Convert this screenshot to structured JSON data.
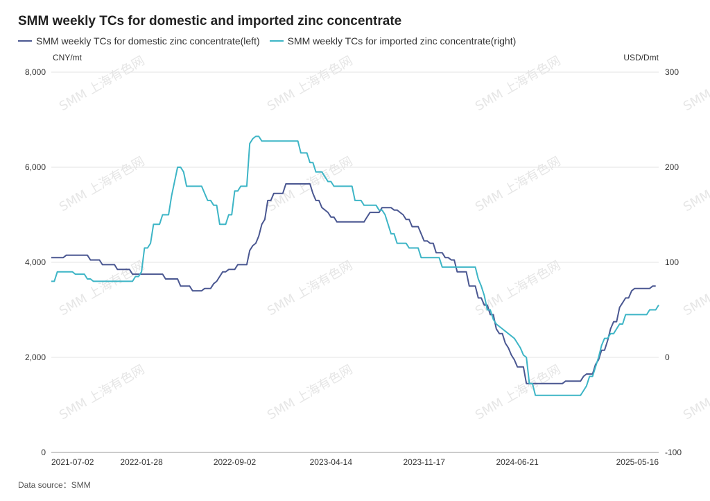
{
  "chart_data": {
    "type": "line",
    "title": "SMM weekly TCs for domestic and imported zinc concentrate",
    "source_label": "Data source：SMM",
    "watermark": "SMM 上海有色网",
    "y_left": {
      "unit": "CNY/mt",
      "min": 0,
      "max": 8000,
      "ticks": [
        "0",
        "2,000",
        "4,000",
        "6,000",
        "8,000"
      ],
      "tick_values": [
        0,
        2000,
        4000,
        6000,
        8000
      ]
    },
    "y_right": {
      "unit": "USD/Dmt",
      "min": -100,
      "max": 300,
      "ticks": [
        "-100",
        "0",
        "100",
        "200",
        "300"
      ],
      "tick_values": [
        -100,
        0,
        100,
        200,
        300
      ]
    },
    "x_ticks": [
      "2021-07-02",
      "2022-01-28",
      "2022-09-02",
      "2023-04-14",
      "2023-11-17",
      "2024-06-21",
      "2025-05-16"
    ],
    "x_tick_index": [
      0,
      30,
      61,
      93,
      124,
      155,
      202
    ],
    "num_points": 203,
    "series": [
      {
        "name": "SMM weekly TCs for domestic zinc concentrate(left)",
        "axis": "left",
        "color": "#4a5791",
        "points": [
          [
            0,
            4100
          ],
          [
            4,
            4100
          ],
          [
            5,
            4150
          ],
          [
            12,
            4150
          ],
          [
            13,
            4050
          ],
          [
            16,
            4050
          ],
          [
            17,
            3950
          ],
          [
            21,
            3950
          ],
          [
            22,
            3850
          ],
          [
            26,
            3850
          ],
          [
            27,
            3750
          ],
          [
            37,
            3750
          ],
          [
            38,
            3650
          ],
          [
            42,
            3650
          ],
          [
            43,
            3500
          ],
          [
            46,
            3500
          ],
          [
            47,
            3400
          ],
          [
            50,
            3400
          ],
          [
            51,
            3450
          ],
          [
            53,
            3450
          ],
          [
            54,
            3550
          ],
          [
            55,
            3600
          ],
          [
            57,
            3800
          ],
          [
            58,
            3800
          ],
          [
            59,
            3850
          ],
          [
            61,
            3850
          ],
          [
            62,
            3950
          ],
          [
            65,
            3950
          ],
          [
            66,
            4250
          ],
          [
            67,
            4350
          ],
          [
            68,
            4400
          ],
          [
            69,
            4550
          ],
          [
            70,
            4800
          ],
          [
            71,
            4900
          ],
          [
            72,
            5300
          ],
          [
            73,
            5300
          ],
          [
            74,
            5450
          ],
          [
            77,
            5450
          ],
          [
            78,
            5650
          ],
          [
            86,
            5650
          ],
          [
            87,
            5450
          ],
          [
            88,
            5300
          ],
          [
            89,
            5300
          ],
          [
            90,
            5150
          ],
          [
            92,
            5050
          ],
          [
            93,
            4950
          ],
          [
            94,
            4950
          ],
          [
            95,
            4850
          ],
          [
            104,
            4850
          ],
          [
            105,
            4950
          ],
          [
            106,
            5050
          ],
          [
            109,
            5050
          ],
          [
            110,
            5150
          ],
          [
            113,
            5150
          ],
          [
            114,
            5100
          ],
          [
            115,
            5100
          ],
          [
            116,
            5050
          ],
          [
            117,
            5000
          ],
          [
            118,
            4900
          ],
          [
            119,
            4900
          ],
          [
            120,
            4750
          ],
          [
            122,
            4750
          ],
          [
            123,
            4600
          ],
          [
            124,
            4450
          ],
          [
            125,
            4450
          ],
          [
            126,
            4400
          ],
          [
            127,
            4400
          ],
          [
            128,
            4200
          ],
          [
            130,
            4200
          ],
          [
            131,
            4100
          ],
          [
            132,
            4100
          ],
          [
            133,
            4050
          ],
          [
            134,
            4050
          ],
          [
            135,
            3800
          ],
          [
            138,
            3800
          ],
          [
            139,
            3500
          ],
          [
            141,
            3500
          ],
          [
            142,
            3250
          ],
          [
            143,
            3250
          ],
          [
            144,
            3100
          ],
          [
            145,
            3100
          ],
          [
            146,
            2900
          ],
          [
            147,
            2900
          ],
          [
            148,
            2600
          ],
          [
            149,
            2500
          ],
          [
            150,
            2500
          ],
          [
            151,
            2300
          ],
          [
            152,
            2200
          ],
          [
            153,
            2050
          ],
          [
            154,
            1950
          ],
          [
            155,
            1800
          ],
          [
            156,
            1800
          ],
          [
            157,
            1800
          ],
          [
            158,
            1450
          ],
          [
            170,
            1450
          ],
          [
            171,
            1500
          ],
          [
            176,
            1500
          ],
          [
            177,
            1600
          ],
          [
            178,
            1650
          ],
          [
            180,
            1650
          ],
          [
            181,
            1850
          ],
          [
            182,
            1950
          ],
          [
            183,
            2150
          ],
          [
            184,
            2150
          ],
          [
            185,
            2350
          ],
          [
            186,
            2600
          ],
          [
            187,
            2750
          ],
          [
            188,
            2750
          ],
          [
            189,
            3050
          ],
          [
            190,
            3150
          ],
          [
            191,
            3250
          ],
          [
            192,
            3250
          ],
          [
            193,
            3400
          ],
          [
            194,
            3450
          ],
          [
            199,
            3450
          ],
          [
            200,
            3500
          ],
          [
            201,
            3500
          ]
        ]
      },
      {
        "name": "SMM weekly TCs for imported zinc concentrate(right)",
        "axis": "right",
        "color": "#3db5c6",
        "points": [
          [
            0,
            80
          ],
          [
            1,
            80
          ],
          [
            2,
            90
          ],
          [
            7,
            90
          ],
          [
            8,
            87.5
          ],
          [
            11,
            87.5
          ],
          [
            12,
            82.5
          ],
          [
            13,
            82.5
          ],
          [
            14,
            80
          ],
          [
            27,
            80
          ],
          [
            28,
            85
          ],
          [
            29,
            85
          ],
          [
            30,
            90
          ],
          [
            31,
            115
          ],
          [
            32,
            115
          ],
          [
            33,
            120
          ],
          [
            34,
            140
          ],
          [
            36,
            140
          ],
          [
            37,
            150
          ],
          [
            39,
            150
          ],
          [
            40,
            170
          ],
          [
            41,
            185
          ],
          [
            42,
            200
          ],
          [
            43,
            200
          ],
          [
            44,
            195
          ],
          [
            45,
            180
          ],
          [
            50,
            180
          ],
          [
            52,
            165
          ],
          [
            53,
            165
          ],
          [
            54,
            160
          ],
          [
            55,
            160
          ],
          [
            56,
            140
          ],
          [
            58,
            140
          ],
          [
            59,
            150
          ],
          [
            60,
            150
          ],
          [
            61,
            175
          ],
          [
            62,
            175
          ],
          [
            63,
            180
          ],
          [
            65,
            180
          ],
          [
            66,
            225
          ],
          [
            67,
            230
          ],
          [
            68,
            232.5
          ],
          [
            69,
            232.5
          ],
          [
            70,
            227.5
          ],
          [
            82,
            227.5
          ],
          [
            83,
            215
          ],
          [
            85,
            215
          ],
          [
            86,
            205
          ],
          [
            87,
            205
          ],
          [
            88,
            195
          ],
          [
            90,
            195
          ],
          [
            91,
            190
          ],
          [
            92,
            185
          ],
          [
            93,
            185
          ],
          [
            94,
            180
          ],
          [
            100,
            180
          ],
          [
            101,
            165
          ],
          [
            103,
            165
          ],
          [
            104,
            160
          ],
          [
            108,
            160
          ],
          [
            109,
            155
          ],
          [
            110,
            155
          ],
          [
            111,
            150
          ],
          [
            112,
            140
          ],
          [
            113,
            130
          ],
          [
            114,
            130
          ],
          [
            115,
            120
          ],
          [
            118,
            120
          ],
          [
            119,
            115
          ],
          [
            122,
            115
          ],
          [
            123,
            105
          ],
          [
            129,
            105
          ],
          [
            130,
            95
          ],
          [
            141,
            95
          ],
          [
            142,
            82.5
          ],
          [
            143,
            75
          ],
          [
            144,
            65
          ],
          [
            145,
            50
          ],
          [
            146,
            50
          ],
          [
            147,
            40
          ],
          [
            148,
            35
          ],
          [
            149,
            32.5
          ],
          [
            150,
            30
          ],
          [
            151,
            27.5
          ],
          [
            152,
            25
          ],
          [
            154,
            20
          ],
          [
            155,
            15
          ],
          [
            156,
            10
          ],
          [
            157,
            2.5
          ],
          [
            158,
            0
          ],
          [
            159,
            -27.5
          ],
          [
            160,
            -27.5
          ],
          [
            161,
            -40
          ],
          [
            176,
            -40
          ],
          [
            177,
            -35
          ],
          [
            178,
            -30
          ],
          [
            179,
            -20
          ],
          [
            180,
            -20
          ],
          [
            181,
            -10
          ],
          [
            182,
            0
          ],
          [
            183,
            12.5
          ],
          [
            184,
            20
          ],
          [
            185,
            20
          ],
          [
            186,
            25
          ],
          [
            187,
            25
          ],
          [
            188,
            30
          ],
          [
            189,
            35
          ],
          [
            190,
            35
          ],
          [
            191,
            45
          ],
          [
            198,
            45
          ],
          [
            199,
            50
          ],
          [
            201,
            50
          ],
          [
            202,
            55
          ]
        ]
      }
    ]
  }
}
